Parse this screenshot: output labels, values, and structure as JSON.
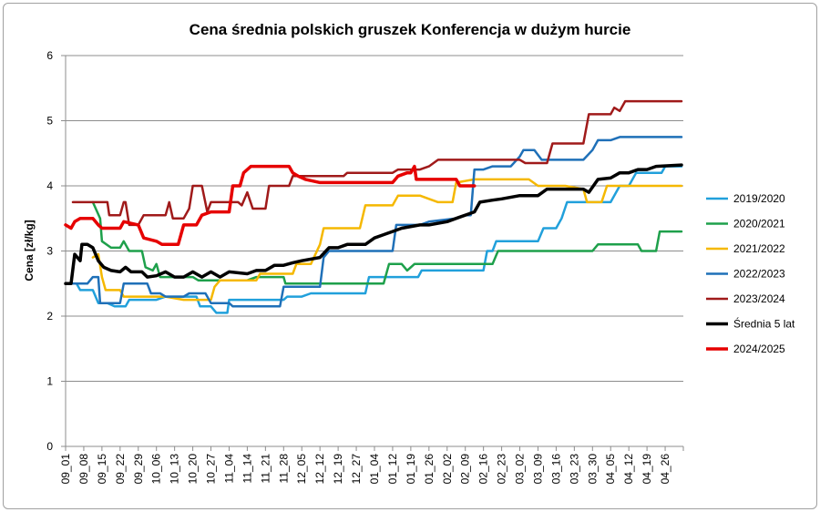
{
  "chart_data": {
    "type": "line",
    "title": "Cena średnia polskich gruszek Konferencja w dużym hurcie",
    "ylabel": "Cena [zł/kg]",
    "xlabel": "",
    "ylim": [
      0,
      6
    ],
    "yticks": [
      "0",
      "1",
      "2",
      "3",
      "4",
      "5",
      "6"
    ],
    "grid": "horizontal",
    "legend_position": "right",
    "categories": [
      "09_01",
      "09_08",
      "09_15",
      "09_22",
      "09_29",
      "10_06",
      "10_13",
      "10_20",
      "10_27",
      "11_04",
      "11_14",
      "11_21",
      "11_28",
      "12_05",
      "12_12",
      "12_19",
      "12_27",
      "01_04",
      "01_12",
      "01_19",
      "01_26",
      "02_02",
      "02_09",
      "02_16",
      "02_23",
      "03_02",
      "03_09",
      "03_16",
      "03_23",
      "03_30",
      "04_05",
      "04_12",
      "04_19",
      "04_26"
    ],
    "series": [
      {
        "name": "2019/2020",
        "color": "#21a0db",
        "width": 2.5,
        "points": [
          [
            0,
            2.5
          ],
          [
            0.6,
            2.5
          ],
          [
            0.8,
            2.4
          ],
          [
            1.5,
            2.4
          ],
          [
            1.8,
            2.2
          ],
          [
            2.3,
            2.2
          ],
          [
            2.7,
            2.15
          ],
          [
            3.3,
            2.15
          ],
          [
            3.5,
            2.25
          ],
          [
            5.0,
            2.25
          ],
          [
            5.5,
            2.3
          ],
          [
            7.2,
            2.3
          ],
          [
            7.4,
            2.15
          ],
          [
            8.0,
            2.15
          ],
          [
            8.3,
            2.05
          ],
          [
            8.9,
            2.05
          ],
          [
            9.0,
            2.25
          ],
          [
            12.0,
            2.25
          ],
          [
            12.2,
            2.3
          ],
          [
            13.0,
            2.3
          ],
          [
            13.5,
            2.35
          ],
          [
            16.5,
            2.35
          ],
          [
            16.7,
            2.6
          ],
          [
            19.4,
            2.6
          ],
          [
            19.6,
            2.7
          ],
          [
            23.0,
            2.7
          ],
          [
            23.2,
            3.0
          ],
          [
            23.5,
            3.0
          ],
          [
            23.7,
            3.15
          ],
          [
            26.0,
            3.15
          ],
          [
            26.3,
            3.35
          ],
          [
            27.0,
            3.35
          ],
          [
            27.3,
            3.5
          ],
          [
            27.6,
            3.75
          ],
          [
            30.0,
            3.75
          ],
          [
            30.5,
            4.0
          ],
          [
            31.0,
            4.0
          ],
          [
            31.4,
            4.2
          ],
          [
            32.8,
            4.2
          ],
          [
            33.0,
            4.3
          ],
          [
            33.9,
            4.3
          ]
        ]
      },
      {
        "name": "2020/2021",
        "color": "#1ea04b",
        "width": 2.5,
        "points": [
          [
            1.5,
            3.75
          ],
          [
            1.9,
            3.5
          ],
          [
            2.0,
            3.15
          ],
          [
            2.5,
            3.05
          ],
          [
            3.0,
            3.05
          ],
          [
            3.2,
            3.15
          ],
          [
            3.5,
            3.0
          ],
          [
            4.2,
            3.0
          ],
          [
            4.4,
            2.75
          ],
          [
            4.8,
            2.7
          ],
          [
            5.0,
            2.8
          ],
          [
            5.2,
            2.6
          ],
          [
            7.0,
            2.6
          ],
          [
            7.3,
            2.55
          ],
          [
            10.0,
            2.55
          ],
          [
            10.5,
            2.6
          ],
          [
            12.0,
            2.6
          ],
          [
            12.1,
            2.5
          ],
          [
            17.5,
            2.5
          ],
          [
            17.8,
            2.8
          ],
          [
            18.5,
            2.8
          ],
          [
            18.8,
            2.7
          ],
          [
            19.2,
            2.8
          ],
          [
            23.5,
            2.8
          ],
          [
            23.8,
            3.0
          ],
          [
            29.0,
            3.0
          ],
          [
            29.3,
            3.1
          ],
          [
            31.5,
            3.1
          ],
          [
            31.7,
            3.0
          ],
          [
            32.5,
            3.0
          ],
          [
            32.7,
            3.3
          ],
          [
            33.9,
            3.3
          ]
        ]
      },
      {
        "name": "2021/2022",
        "color": "#f5b800",
        "width": 2.5,
        "points": [
          [
            1.5,
            2.9
          ],
          [
            1.8,
            2.95
          ],
          [
            2.0,
            2.6
          ],
          [
            2.2,
            2.4
          ],
          [
            3.0,
            2.4
          ],
          [
            3.2,
            2.3
          ],
          [
            5.5,
            2.3
          ],
          [
            6.5,
            2.25
          ],
          [
            8.0,
            2.25
          ],
          [
            8.2,
            2.45
          ],
          [
            8.5,
            2.55
          ],
          [
            10.5,
            2.55
          ],
          [
            10.7,
            2.65
          ],
          [
            12.5,
            2.65
          ],
          [
            12.7,
            2.8
          ],
          [
            13.5,
            2.8
          ],
          [
            14.0,
            3.1
          ],
          [
            14.2,
            3.35
          ],
          [
            16.2,
            3.35
          ],
          [
            16.5,
            3.7
          ],
          [
            18.0,
            3.7
          ],
          [
            18.3,
            3.85
          ],
          [
            19.5,
            3.85
          ],
          [
            20.0,
            3.8
          ],
          [
            20.5,
            3.75
          ],
          [
            21.3,
            3.75
          ],
          [
            21.5,
            4.05
          ],
          [
            22.5,
            4.1
          ],
          [
            25.5,
            4.1
          ],
          [
            26.0,
            4.0
          ],
          [
            27.5,
            4.0
          ],
          [
            28.5,
            3.95
          ],
          [
            28.7,
            3.75
          ],
          [
            29.5,
            3.75
          ],
          [
            29.8,
            4.0
          ],
          [
            30.3,
            4.0
          ],
          [
            30.5,
            4.0
          ],
          [
            33.9,
            4.0
          ]
        ]
      },
      {
        "name": "2022/2023",
        "color": "#1f70b8",
        "width": 2.5,
        "points": [
          [
            0,
            2.5
          ],
          [
            1.2,
            2.5
          ],
          [
            1.5,
            2.6
          ],
          [
            1.8,
            2.6
          ],
          [
            1.9,
            2.2
          ],
          [
            3.0,
            2.2
          ],
          [
            3.2,
            2.5
          ],
          [
            4.5,
            2.5
          ],
          [
            4.7,
            2.35
          ],
          [
            5.2,
            2.35
          ],
          [
            5.5,
            2.3
          ],
          [
            6.5,
            2.3
          ],
          [
            6.8,
            2.35
          ],
          [
            7.7,
            2.35
          ],
          [
            8.0,
            2.2
          ],
          [
            9.0,
            2.2
          ],
          [
            9.2,
            2.15
          ],
          [
            11.8,
            2.15
          ],
          [
            12.0,
            2.45
          ],
          [
            14.0,
            2.45
          ],
          [
            14.2,
            2.9
          ],
          [
            14.5,
            3.0
          ],
          [
            18.0,
            3.0
          ],
          [
            18.2,
            3.4
          ],
          [
            19.5,
            3.4
          ],
          [
            20.0,
            3.45
          ],
          [
            21.5,
            3.5
          ],
          [
            22.0,
            3.55
          ],
          [
            22.3,
            3.55
          ],
          [
            22.5,
            4.25
          ],
          [
            23.0,
            4.25
          ],
          [
            23.5,
            4.3
          ],
          [
            24.5,
            4.3
          ],
          [
            25.0,
            4.45
          ],
          [
            25.2,
            4.55
          ],
          [
            25.8,
            4.55
          ],
          [
            26.2,
            4.4
          ],
          [
            28.5,
            4.4
          ],
          [
            29.0,
            4.55
          ],
          [
            29.3,
            4.7
          ],
          [
            30.0,
            4.7
          ],
          [
            30.5,
            4.75
          ],
          [
            33.9,
            4.75
          ]
        ]
      },
      {
        "name": "2023/2024",
        "color": "#a01a1a",
        "width": 2.5,
        "points": [
          [
            0.4,
            3.75
          ],
          [
            2.3,
            3.75
          ],
          [
            2.4,
            3.55
          ],
          [
            3.0,
            3.55
          ],
          [
            3.2,
            3.75
          ],
          [
            3.3,
            3.75
          ],
          [
            3.5,
            3.4
          ],
          [
            4.0,
            3.4
          ],
          [
            4.3,
            3.55
          ],
          [
            5.5,
            3.55
          ],
          [
            5.7,
            3.75
          ],
          [
            5.9,
            3.5
          ],
          [
            6.5,
            3.5
          ],
          [
            6.8,
            3.65
          ],
          [
            7.0,
            4.0
          ],
          [
            7.5,
            4.0
          ],
          [
            7.8,
            3.6
          ],
          [
            8.0,
            3.75
          ],
          [
            9.5,
            3.75
          ],
          [
            9.7,
            3.7
          ],
          [
            10.0,
            3.9
          ],
          [
            10.3,
            3.65
          ],
          [
            11.0,
            3.65
          ],
          [
            11.2,
            4.0
          ],
          [
            12.3,
            4.0
          ],
          [
            12.5,
            4.15
          ],
          [
            15.3,
            4.15
          ],
          [
            15.5,
            4.2
          ],
          [
            18.0,
            4.2
          ],
          [
            18.3,
            4.25
          ],
          [
            19.5,
            4.25
          ],
          [
            20.0,
            4.3
          ],
          [
            20.5,
            4.4
          ],
          [
            25.0,
            4.4
          ],
          [
            25.3,
            4.35
          ],
          [
            26.5,
            4.35
          ],
          [
            26.8,
            4.65
          ],
          [
            28.5,
            4.65
          ],
          [
            28.8,
            5.1
          ],
          [
            30.0,
            5.1
          ],
          [
            30.2,
            5.2
          ],
          [
            30.5,
            5.15
          ],
          [
            30.8,
            5.3
          ],
          [
            31.0,
            5.3
          ],
          [
            33.9,
            5.3
          ]
        ]
      },
      {
        "name": "Średnia 5 lat",
        "color": "#000000",
        "width": 3.5,
        "points": [
          [
            0,
            2.5
          ],
          [
            0.3,
            2.5
          ],
          [
            0.5,
            2.95
          ],
          [
            0.8,
            2.85
          ],
          [
            0.9,
            3.1
          ],
          [
            1.2,
            3.1
          ],
          [
            1.5,
            3.05
          ],
          [
            1.8,
            2.85
          ],
          [
            2.1,
            2.75
          ],
          [
            2.5,
            2.7
          ],
          [
            3.0,
            2.68
          ],
          [
            3.3,
            2.75
          ],
          [
            3.6,
            2.68
          ],
          [
            4.2,
            2.68
          ],
          [
            4.5,
            2.6
          ],
          [
            5.0,
            2.62
          ],
          [
            5.5,
            2.68
          ],
          [
            6.0,
            2.6
          ],
          [
            6.5,
            2.6
          ],
          [
            7.0,
            2.68
          ],
          [
            7.5,
            2.6
          ],
          [
            8.0,
            2.68
          ],
          [
            8.5,
            2.6
          ],
          [
            9.0,
            2.68
          ],
          [
            10.0,
            2.65
          ],
          [
            10.5,
            2.7
          ],
          [
            11.0,
            2.7
          ],
          [
            11.5,
            2.78
          ],
          [
            12.0,
            2.78
          ],
          [
            12.5,
            2.82
          ],
          [
            13.0,
            2.85
          ],
          [
            14.0,
            2.9
          ],
          [
            14.5,
            3.05
          ],
          [
            15.0,
            3.05
          ],
          [
            15.5,
            3.1
          ],
          [
            16.5,
            3.1
          ],
          [
            17.0,
            3.2
          ],
          [
            17.5,
            3.25
          ],
          [
            18.0,
            3.3
          ],
          [
            18.5,
            3.35
          ],
          [
            19.5,
            3.4
          ],
          [
            20.0,
            3.4
          ],
          [
            21.0,
            3.45
          ],
          [
            21.5,
            3.5
          ],
          [
            22.5,
            3.6
          ],
          [
            22.8,
            3.75
          ],
          [
            23.5,
            3.78
          ],
          [
            24.0,
            3.8
          ],
          [
            25.0,
            3.85
          ],
          [
            26.0,
            3.85
          ],
          [
            26.5,
            3.95
          ],
          [
            28.5,
            3.95
          ],
          [
            28.8,
            3.9
          ],
          [
            29.3,
            4.1
          ],
          [
            30.0,
            4.12
          ],
          [
            30.5,
            4.2
          ],
          [
            31.0,
            4.2
          ],
          [
            31.5,
            4.25
          ],
          [
            32.0,
            4.25
          ],
          [
            32.5,
            4.3
          ],
          [
            33.9,
            4.32
          ]
        ]
      },
      {
        "name": "2024/2025",
        "color": "#e60000",
        "width": 3.5,
        "points": [
          [
            0,
            3.4
          ],
          [
            0.3,
            3.35
          ],
          [
            0.5,
            3.45
          ],
          [
            0.8,
            3.5
          ],
          [
            1.5,
            3.5
          ],
          [
            1.8,
            3.4
          ],
          [
            2.0,
            3.35
          ],
          [
            3.0,
            3.35
          ],
          [
            3.2,
            3.45
          ],
          [
            4.0,
            3.4
          ],
          [
            4.3,
            3.2
          ],
          [
            5.0,
            3.15
          ],
          [
            5.3,
            3.1
          ],
          [
            6.2,
            3.1
          ],
          [
            6.5,
            3.4
          ],
          [
            7.2,
            3.4
          ],
          [
            7.5,
            3.55
          ],
          [
            8.0,
            3.6
          ],
          [
            9.0,
            3.6
          ],
          [
            9.2,
            4.0
          ],
          [
            9.6,
            4.0
          ],
          [
            9.8,
            4.2
          ],
          [
            10.2,
            4.3
          ],
          [
            12.3,
            4.3
          ],
          [
            12.5,
            4.2
          ],
          [
            12.8,
            4.15
          ],
          [
            13.2,
            4.1
          ],
          [
            14.0,
            4.05
          ],
          [
            18.0,
            4.05
          ],
          [
            18.3,
            4.15
          ],
          [
            18.8,
            4.2
          ],
          [
            19.0,
            4.2
          ],
          [
            19.2,
            4.3
          ],
          [
            19.3,
            4.1
          ],
          [
            21.5,
            4.1
          ],
          [
            21.7,
            4.0
          ],
          [
            22.5,
            4.0
          ]
        ]
      }
    ]
  }
}
